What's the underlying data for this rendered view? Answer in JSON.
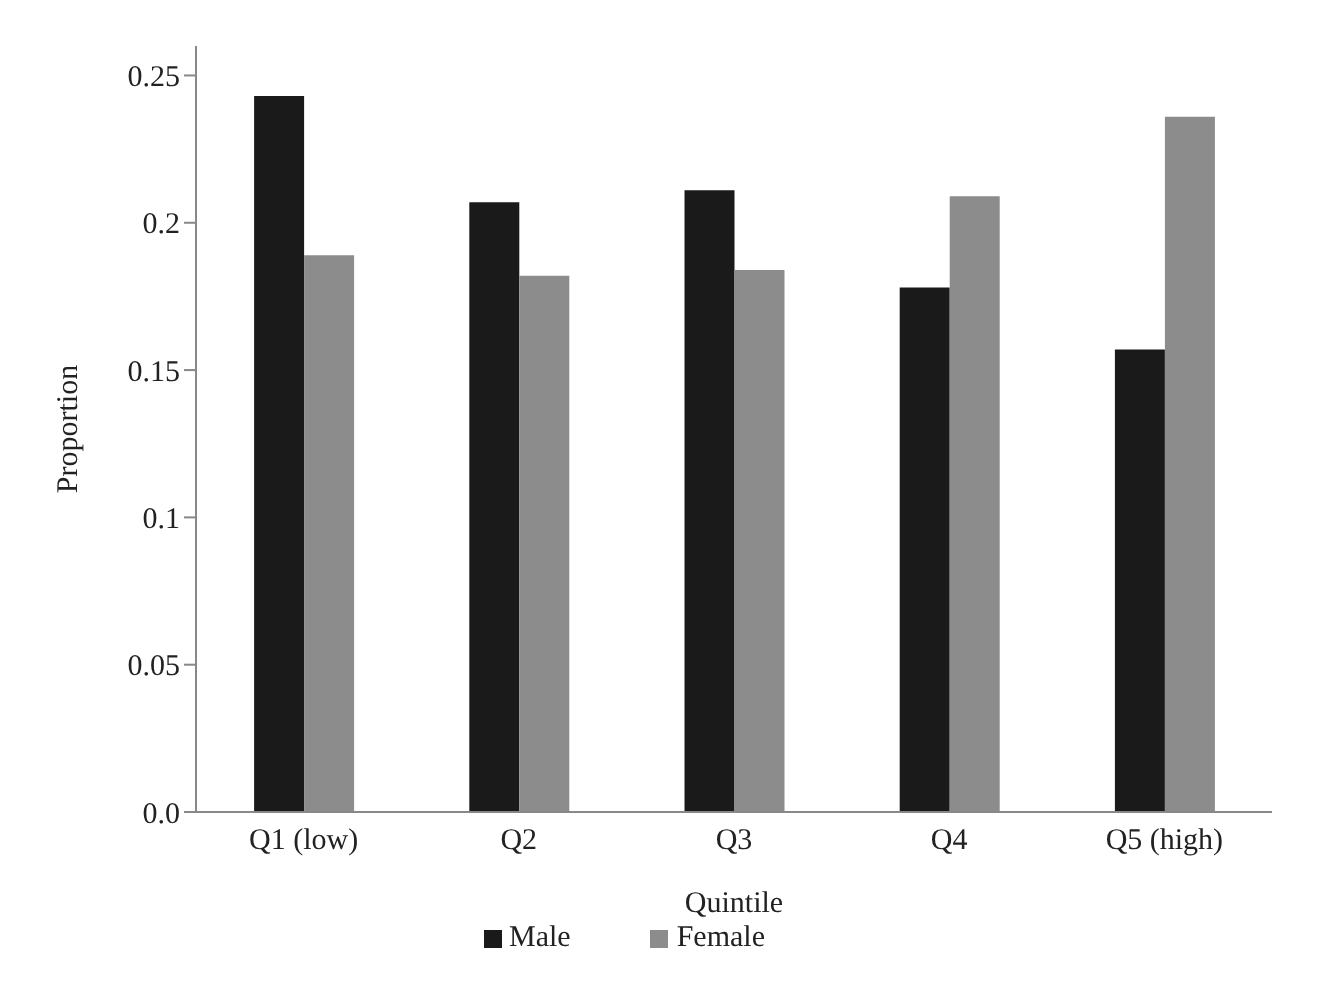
{
  "chart_data": {
    "type": "bar",
    "xlabel": "Quintile",
    "ylabel": "Proportion",
    "categories": [
      "Q1 (low)",
      "Q2",
      "Q3",
      "Q4",
      "Q5 (high)"
    ],
    "series": [
      {
        "name": "Male",
        "color": "#1a1a1a",
        "values": [
          0.243,
          0.207,
          0.211,
          0.178,
          0.157
        ]
      },
      {
        "name": "Female",
        "color": "#8c8c8c",
        "values": [
          0.189,
          0.182,
          0.184,
          0.209,
          0.236
        ]
      }
    ],
    "ylim": [
      0,
      0.26
    ],
    "yticks": [
      {
        "value": 0,
        "label": "0.0"
      },
      0.05,
      0.1,
      0.15,
      0.2,
      0.25
    ],
    "grid": false,
    "legend": "bottom"
  }
}
